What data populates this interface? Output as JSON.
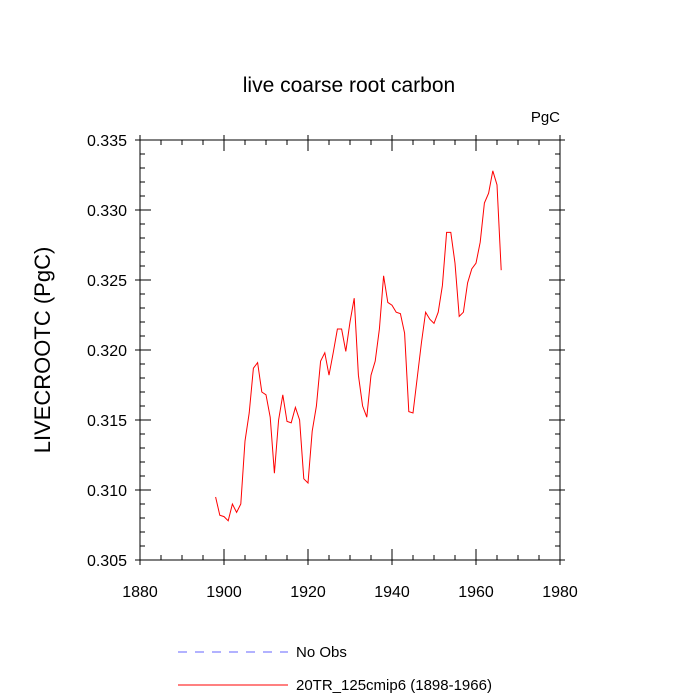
{
  "chart_data": {
    "type": "line",
    "title": "live coarse root carbon",
    "units_label": "PgC",
    "ylabel": "LIVECROOTC  (PgC)",
    "xlabel": "",
    "xlim": [
      1880,
      1980
    ],
    "ylim": [
      0.305,
      0.335
    ],
    "x_ticks": [
      1880,
      1900,
      1920,
      1940,
      1960,
      1980
    ],
    "x_tick_labels": [
      "1880",
      "1900",
      "1920",
      "1940",
      "1960",
      "1980"
    ],
    "y_ticks": [
      0.305,
      0.31,
      0.315,
      0.32,
      0.325,
      0.33,
      0.335
    ],
    "y_tick_labels": [
      "0.305",
      "0.310",
      "0.315",
      "0.320",
      "0.325",
      "0.330",
      "0.335"
    ],
    "series": [
      {
        "name": "20TR_125cmip6 (1898-1966)",
        "color": "#ff0000",
        "dash": "solid",
        "x": [
          1898,
          1899,
          1900,
          1901,
          1902,
          1903,
          1904,
          1905,
          1906,
          1907,
          1908,
          1909,
          1910,
          1911,
          1912,
          1913,
          1914,
          1915,
          1916,
          1917,
          1918,
          1919,
          1920,
          1921,
          1922,
          1923,
          1924,
          1925,
          1926,
          1927,
          1928,
          1929,
          1930,
          1931,
          1932,
          1933,
          1934,
          1935,
          1936,
          1937,
          1938,
          1939,
          1940,
          1941,
          1942,
          1943,
          1944,
          1945,
          1946,
          1947,
          1948,
          1949,
          1950,
          1951,
          1952,
          1953,
          1954,
          1955,
          1956,
          1957,
          1958,
          1959,
          1960,
          1961,
          1962,
          1963,
          1964,
          1965,
          1966
        ],
        "values": [
          0.3095,
          0.3082,
          0.3081,
          0.3078,
          0.309,
          0.3084,
          0.309,
          0.3135,
          0.3155,
          0.3187,
          0.3191,
          0.317,
          0.3168,
          0.3152,
          0.3112,
          0.315,
          0.3168,
          0.3149,
          0.3148,
          0.3159,
          0.315,
          0.3108,
          0.3105,
          0.3142,
          0.316,
          0.3192,
          0.3198,
          0.3182,
          0.3198,
          0.3215,
          0.3215,
          0.3199,
          0.322,
          0.3237,
          0.3182,
          0.316,
          0.3152,
          0.3182,
          0.3192,
          0.3215,
          0.3253,
          0.3234,
          0.3232,
          0.3227,
          0.3226,
          0.3212,
          0.3156,
          0.3155,
          0.318,
          0.3205,
          0.3227,
          0.3222,
          0.3219,
          0.3227,
          0.3246,
          0.3284,
          0.3284,
          0.3262,
          0.3224,
          0.3227,
          0.3248,
          0.3258,
          0.3262,
          0.3277,
          0.3305,
          0.3312,
          0.3328,
          0.3318,
          0.3257
        ]
      }
    ],
    "legend": [
      {
        "label": "No Obs",
        "color": "#6464ff",
        "dash": "dashed"
      },
      {
        "label": "20TR_125cmip6 (1898-1966)",
        "color": "#ff0000",
        "dash": "solid"
      }
    ],
    "legend_position": "bottom-center",
    "grid": false
  }
}
